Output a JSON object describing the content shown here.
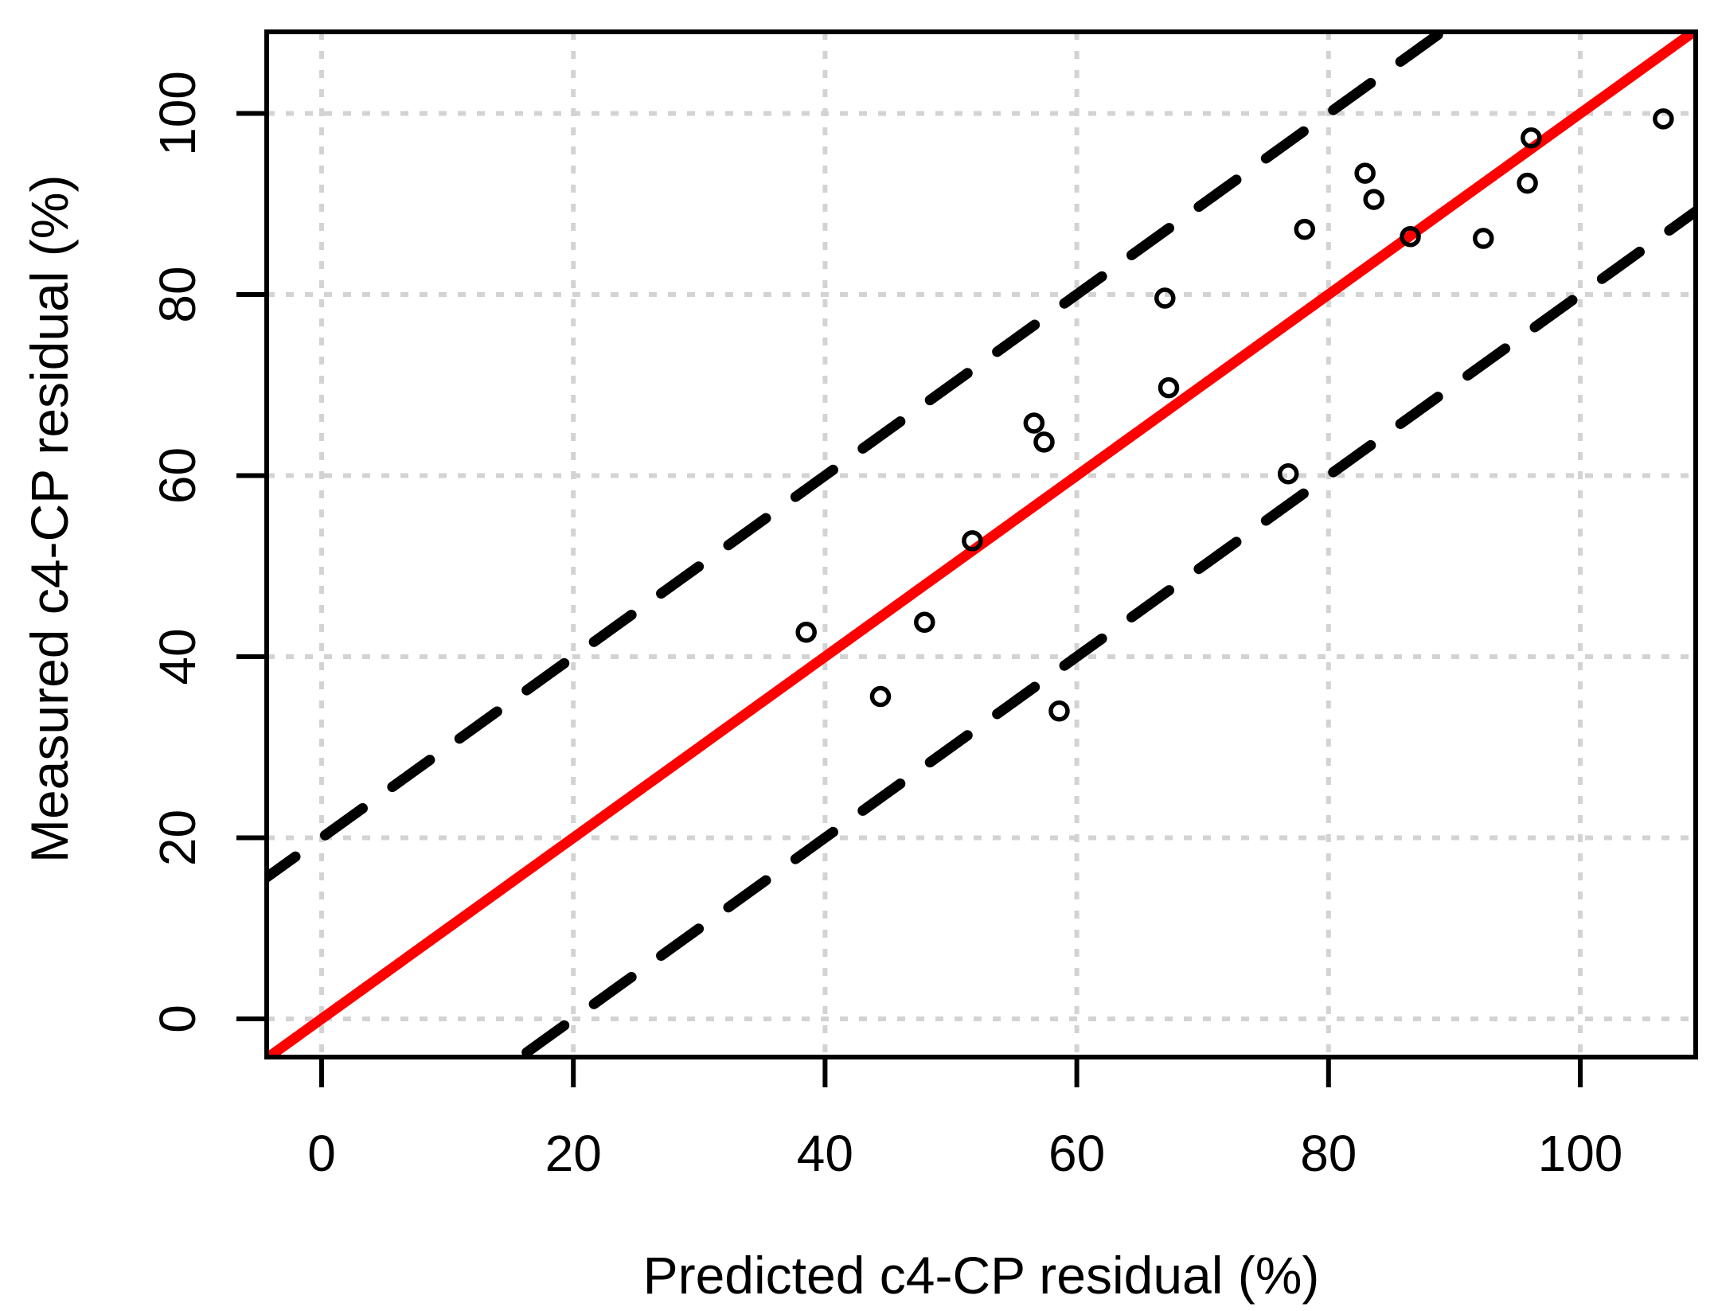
{
  "figure": {
    "background_color": "#FFFFFF",
    "plot_border_color": "#000000"
  },
  "chart_data": {
    "type": "scatter",
    "title": "",
    "xlabel": "Predicted c4-CP residual (%)",
    "ylabel": "Measured c4-CP residual (%)",
    "xlim": [
      -4.4,
      109.3
    ],
    "ylim": [
      -4.3,
      109.0
    ],
    "x_ticks": [
      0,
      20,
      40,
      60,
      80,
      100
    ],
    "y_ticks": [
      0,
      20,
      40,
      60,
      80,
      100
    ],
    "grid": true,
    "grid_style": "dotted",
    "points": [
      [
        38.5,
        42.7
      ],
      [
        44.4,
        35.6
      ],
      [
        47.9,
        43.8
      ],
      [
        51.7,
        52.8
      ],
      [
        56.6,
        65.8
      ],
      [
        57.4,
        63.7
      ],
      [
        58.6,
        34.0
      ],
      [
        67.0,
        79.6
      ],
      [
        67.3,
        69.7
      ],
      [
        76.8,
        60.2
      ],
      [
        78.1,
        87.2
      ],
      [
        82.9,
        93.4
      ],
      [
        83.6,
        90.5
      ],
      [
        86.5,
        86.4
      ],
      [
        92.3,
        86.2
      ],
      [
        95.8,
        92.3
      ],
      [
        96.1,
        97.3
      ],
      [
        106.6,
        99.4
      ]
    ],
    "marker": "open-circle",
    "lines": [
      {
        "name": "identity-line",
        "equation": "y = x",
        "slope": 1,
        "intercept": 0,
        "color": "#FF0000",
        "style": "solid"
      },
      {
        "name": "upper-limit-line",
        "equation": "y = x + 20",
        "slope": 1,
        "intercept": 20,
        "color": "#000000",
        "style": "dashed"
      },
      {
        "name": "lower-limit-line",
        "equation": "y = x - 20",
        "slope": 1,
        "intercept": -20,
        "color": "#000000",
        "style": "dashed"
      }
    ],
    "colors": {
      "grid": "#D3D3D3",
      "points": "#000000",
      "axis": "#000000",
      "identity": "#FF0000"
    },
    "legend": null
  }
}
